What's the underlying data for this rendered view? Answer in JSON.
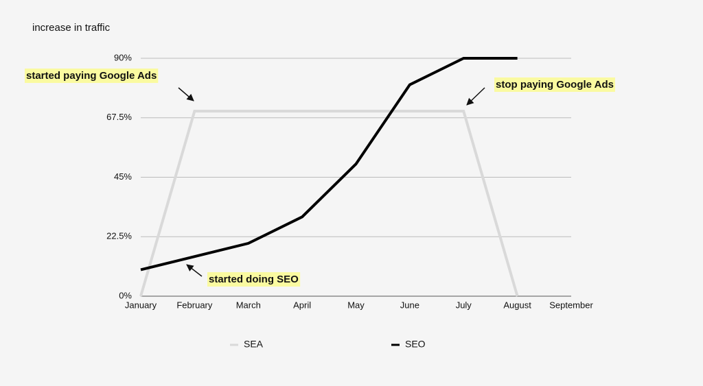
{
  "chart_data": {
    "type": "line",
    "y_axis_title": "increase in traffic",
    "categories": [
      "January",
      "February",
      "March",
      "April",
      "May",
      "June",
      "July",
      "August",
      "September"
    ],
    "series": [
      {
        "name": "SEA",
        "color": "#d9d9d9",
        "values": [
          0,
          70,
          70,
          70,
          70,
          70,
          70,
          0,
          null
        ]
      },
      {
        "name": "SEO",
        "color": "#000000",
        "values": [
          10,
          15,
          20,
          30,
          50,
          80,
          90,
          90,
          null
        ]
      }
    ],
    "ylim": [
      0,
      90
    ],
    "yticks": [
      {
        "value": 0,
        "label": "0%"
      },
      {
        "value": 22.5,
        "label": "22.5%"
      },
      {
        "value": 45,
        "label": "45%"
      },
      {
        "value": 67.5,
        "label": "67.5%"
      },
      {
        "value": 90,
        "label": "90%"
      }
    ],
    "grid": true,
    "legend": "bottom",
    "annotations": [
      "started paying Google Ads",
      "stop paying Google Ads",
      "started doing SEO"
    ]
  }
}
